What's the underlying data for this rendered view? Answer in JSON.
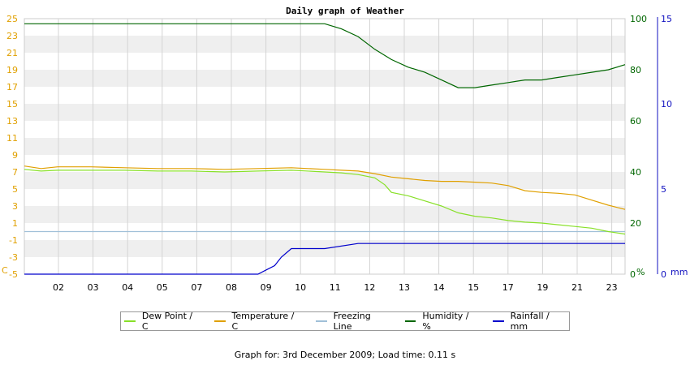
{
  "chart_data": {
    "type": "line",
    "title": "Daily graph of Weather",
    "x_tick_labels": [
      "02",
      "03",
      "04",
      "05",
      "07",
      "08",
      "09",
      "10",
      "11",
      "12",
      "13",
      "14",
      "15",
      "17",
      "19",
      "21",
      "23"
    ],
    "y_left": {
      "unit_label": "C",
      "range": [
        -5,
        25
      ],
      "ticks": [
        -5,
        -3,
        -1,
        1,
        3,
        5,
        7,
        9,
        11,
        13,
        15,
        17,
        19,
        21,
        23,
        25
      ]
    },
    "y_humidity": {
      "unit_label": "%",
      "range": [
        0,
        100
      ],
      "ticks": [
        0,
        20,
        40,
        60,
        80,
        100
      ]
    },
    "y_rainfall": {
      "unit_label": "mm",
      "range": [
        0,
        15
      ],
      "ticks": [
        0,
        5,
        10,
        15
      ]
    },
    "grid": true,
    "legend_position": "bottom",
    "series": [
      {
        "name": "Dew Point / C",
        "axis": "y_left",
        "color": "#88e028",
        "points": [
          [
            1.0,
            7.3
          ],
          [
            1.5,
            7.1
          ],
          [
            2.0,
            7.2
          ],
          [
            3.0,
            7.2
          ],
          [
            4.0,
            7.2
          ],
          [
            5.0,
            7.1
          ],
          [
            6.0,
            7.1
          ],
          [
            7.0,
            7.0
          ],
          [
            8.0,
            7.1
          ],
          [
            9.0,
            7.2
          ],
          [
            10.0,
            7.0
          ],
          [
            10.5,
            6.9
          ],
          [
            11.0,
            6.7
          ],
          [
            11.5,
            6.3
          ],
          [
            11.8,
            5.5
          ],
          [
            12.0,
            4.6
          ],
          [
            12.5,
            4.2
          ],
          [
            13.0,
            3.6
          ],
          [
            13.5,
            3.0
          ],
          [
            14.0,
            2.2
          ],
          [
            14.5,
            1.8
          ],
          [
            15.0,
            1.6
          ],
          [
            15.5,
            1.3
          ],
          [
            16.0,
            1.1
          ],
          [
            16.5,
            1.0
          ],
          [
            17.0,
            0.8
          ],
          [
            17.5,
            0.6
          ],
          [
            18.0,
            0.4
          ],
          [
            18.5,
            0.0
          ],
          [
            19.0,
            -0.3
          ]
        ]
      },
      {
        "name": "Temperature / C",
        "axis": "y_left",
        "color": "#e0a000",
        "points": [
          [
            1.0,
            7.7
          ],
          [
            1.5,
            7.4
          ],
          [
            2.0,
            7.6
          ],
          [
            3.0,
            7.6
          ],
          [
            4.0,
            7.5
          ],
          [
            5.0,
            7.4
          ],
          [
            6.0,
            7.4
          ],
          [
            7.0,
            7.3
          ],
          [
            8.0,
            7.4
          ],
          [
            9.0,
            7.5
          ],
          [
            10.0,
            7.3
          ],
          [
            10.5,
            7.2
          ],
          [
            11.0,
            7.1
          ],
          [
            11.5,
            6.8
          ],
          [
            12.0,
            6.4
          ],
          [
            12.5,
            6.2
          ],
          [
            13.0,
            6.0
          ],
          [
            13.5,
            5.9
          ],
          [
            14.0,
            5.9
          ],
          [
            14.5,
            5.8
          ],
          [
            15.0,
            5.7
          ],
          [
            15.5,
            5.4
          ],
          [
            16.0,
            4.8
          ],
          [
            16.5,
            4.6
          ],
          [
            17.0,
            4.5
          ],
          [
            17.5,
            4.3
          ],
          [
            18.0,
            3.7
          ],
          [
            18.5,
            3.1
          ],
          [
            19.0,
            2.6
          ]
        ]
      },
      {
        "name": "Freezing Line",
        "axis": "y_left",
        "color": "#a0c0d8",
        "points": [
          [
            1.0,
            0
          ],
          [
            19.0,
            0
          ]
        ]
      },
      {
        "name": "Humidity / %",
        "axis": "y_humidity",
        "color": "#006600",
        "points": [
          [
            1.0,
            98
          ],
          [
            10.0,
            98
          ],
          [
            10.5,
            96
          ],
          [
            11.0,
            93
          ],
          [
            11.5,
            88
          ],
          [
            12.0,
            84
          ],
          [
            12.5,
            81
          ],
          [
            13.0,
            79
          ],
          [
            13.5,
            76
          ],
          [
            14.0,
            73
          ],
          [
            14.5,
            73
          ],
          [
            15.0,
            74
          ],
          [
            15.5,
            75
          ],
          [
            16.0,
            76
          ],
          [
            16.5,
            76
          ],
          [
            17.0,
            77
          ],
          [
            17.5,
            78
          ],
          [
            18.0,
            79
          ],
          [
            18.5,
            80
          ],
          [
            19.0,
            82
          ]
        ]
      },
      {
        "name": "Rainfall / mm",
        "axis": "y_rainfall",
        "color": "#0000cc",
        "points": [
          [
            1.0,
            0
          ],
          [
            8.0,
            0
          ],
          [
            8.3,
            0.3
          ],
          [
            8.5,
            0.5
          ],
          [
            8.7,
            1.0
          ],
          [
            9.0,
            1.5
          ],
          [
            10.0,
            1.5
          ],
          [
            11.0,
            1.8
          ],
          [
            19.0,
            1.8
          ]
        ]
      }
    ]
  },
  "y_axis_units": {
    "left": "C",
    "humidity": "%",
    "rainfall": "mm"
  },
  "legend": [
    {
      "label": "Dew Point / C",
      "color": "#88e028"
    },
    {
      "label": "Temperature / C",
      "color": "#e0a000"
    },
    {
      "label": "Freezing Line",
      "color": "#a0c0d8"
    },
    {
      "label": "Humidity / %",
      "color": "#006600"
    },
    {
      "label": "Rainfall / mm",
      "color": "#0000cc"
    }
  ],
  "footer": "Graph for: 3rd December 2009; Load time: 0.11 s"
}
